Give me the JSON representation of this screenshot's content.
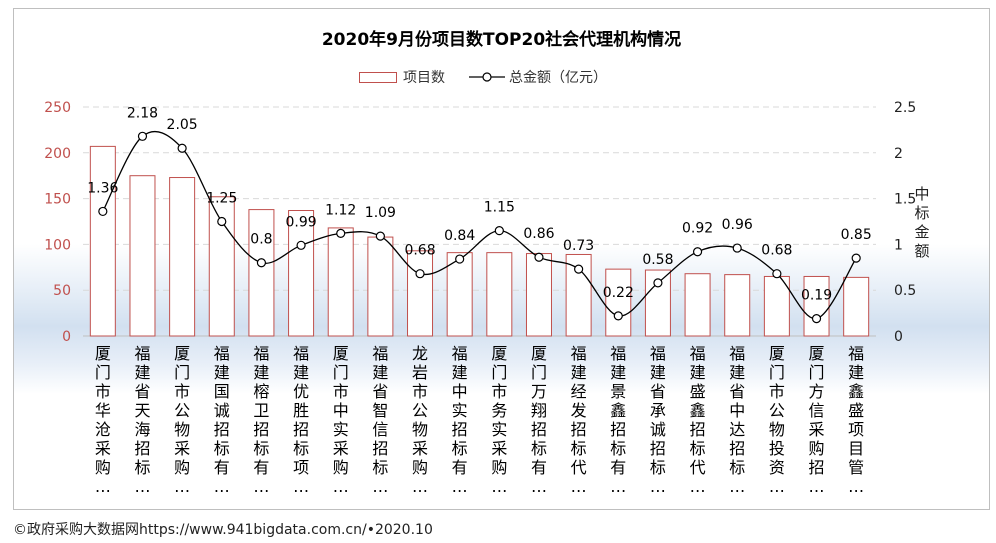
{
  "chart_data": {
    "type": "bar+line",
    "title": "2020年9月份项目数TOP20社会代理机构情况",
    "categories": [
      "厦门市华沧采购…",
      "福建省天海招标…",
      "厦门市公物采购…",
      "福建国诚招标有…",
      "福建榕卫招标有…",
      "福建优胜招标项…",
      "厦门市中实采购…",
      "福建省智信招标…",
      "龙岩市公物采购…",
      "福建中实招标有…",
      "厦门市务实采购…",
      "厦门万翔招标有…",
      "福建经发招标代…",
      "福建景鑫招标有…",
      "福建省承诚招标…",
      "福建盛鑫招标代…",
      "福建省中达招标…",
      "厦门市公物投资…",
      "厦门方信采购招…",
      "福建鑫盛项目管…"
    ],
    "series": [
      {
        "name": "项目数",
        "type": "bar",
        "axis": "left",
        "values": [
          207,
          175,
          173,
          152,
          138,
          137,
          118,
          108,
          93,
          91,
          91,
          90,
          89,
          73,
          72,
          68,
          67,
          65,
          65,
          64
        ]
      },
      {
        "name": "总金额（亿元）",
        "type": "line",
        "axis": "right",
        "values": [
          1.36,
          2.18,
          2.05,
          1.25,
          0.8,
          0.99,
          1.12,
          1.09,
          0.68,
          0.84,
          1.15,
          0.86,
          0.73,
          0.22,
          0.58,
          0.92,
          0.96,
          0.68,
          0.19,
          0.85
        ],
        "labels": [
          "1.36",
          "2.18",
          "2.05",
          "1.25",
          "0.8",
          "0.99",
          "1.12",
          "1.09",
          "0.68",
          "0.84",
          "1.15",
          "0.86",
          "0.73",
          "0.22",
          "0.58",
          "0.92",
          "0.96",
          "0.68",
          "0.19",
          "0.85"
        ]
      }
    ],
    "y_left": {
      "min": 0,
      "max": 250,
      "ticks": [
        "0",
        "50",
        "100",
        "150",
        "200",
        "250"
      ]
    },
    "y_right": {
      "min": 0,
      "max": 2.5,
      "ticks": [
        "0",
        "0.5",
        "1",
        "1.5",
        "2",
        "2.5"
      ],
      "label": "中标金额"
    },
    "legend_position": "top-center",
    "grid": true,
    "colors": {
      "bar_border": "#c0504d",
      "bar_fill": "#ffffff",
      "line": "#000000",
      "marker_fill": "#ffffff",
      "left_tick_text": "#c0504d",
      "grid": "#d9d9d9"
    }
  },
  "legend": {
    "bar_label": "项目数",
    "line_label": "总金额（亿元）"
  },
  "footer": {
    "source": "©政府采购大数据网https://www.941bigdata.com.cn/•2020.10"
  }
}
